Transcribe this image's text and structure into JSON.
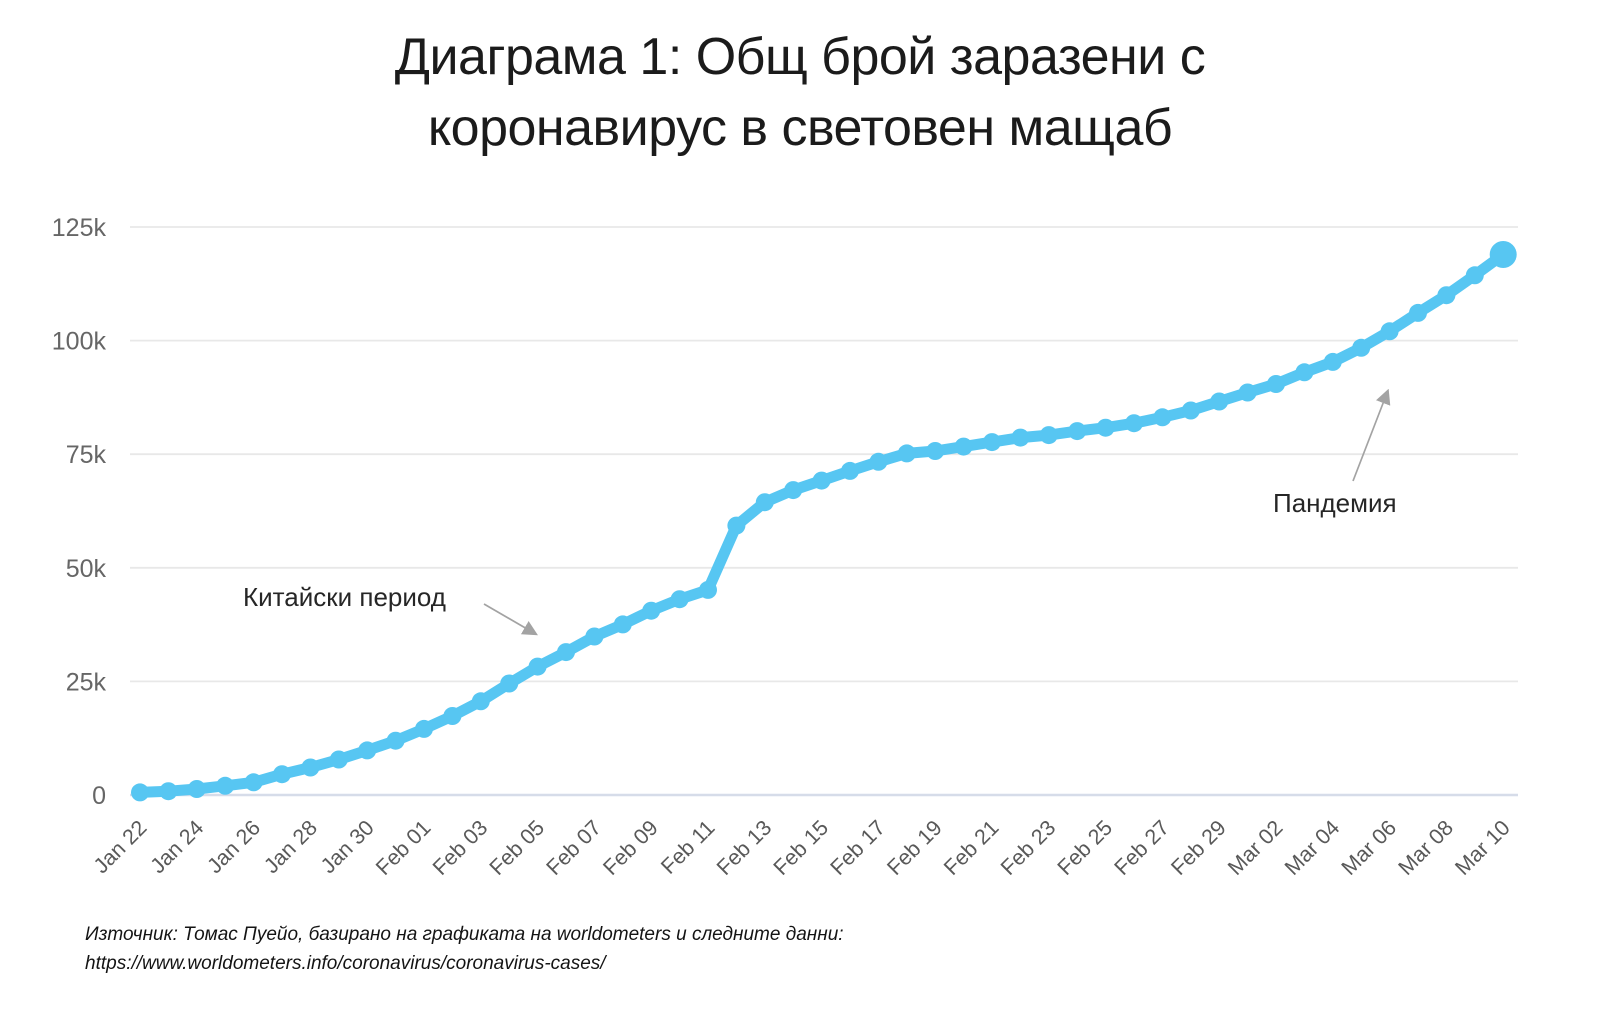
{
  "title": {
    "line1": "Диаграма 1: Общ брой заразени с",
    "line2": "коронавирус в световен мащаб"
  },
  "source": {
    "line1": "Източник: Томас Пуейо, базирано на графиката на worldometers и следните данни:",
    "line2": "https://www.worldometers.info/coronavirus/coronavirus-cases/"
  },
  "colors": {
    "line": "#57C6F2",
    "grid": "#e8e8e8",
    "axis_line": "#d6dce9",
    "y_tick_text": "#666666",
    "x_tick_text": "#595959",
    "title_text": "#1b1b1b",
    "annotation_text": "#262626",
    "arrow": "#a3a3a3"
  },
  "chart_data": {
    "type": "line",
    "title": "Диаграма 1: Общ брой заразени с коронавирус в световен мащаб",
    "series_name": "Общ брой заразени с коронавирус",
    "x": [
      "Jan 22",
      "Jan 23",
      "Jan 24",
      "Jan 25",
      "Jan 26",
      "Jan 27",
      "Jan 28",
      "Jan 29",
      "Jan 30",
      "Jan 31",
      "Feb 01",
      "Feb 02",
      "Feb 03",
      "Feb 04",
      "Feb 05",
      "Feb 06",
      "Feb 07",
      "Feb 08",
      "Feb 09",
      "Feb 10",
      "Feb 11",
      "Feb 12",
      "Feb 13",
      "Feb 14",
      "Feb 15",
      "Feb 16",
      "Feb 17",
      "Feb 18",
      "Feb 19",
      "Feb 20",
      "Feb 21",
      "Feb 22",
      "Feb 23",
      "Feb 24",
      "Feb 25",
      "Feb 26",
      "Feb 27",
      "Feb 28",
      "Feb 29",
      "Mar 01",
      "Mar 02",
      "Mar 03",
      "Mar 04",
      "Mar 05",
      "Mar 06",
      "Mar 07",
      "Mar 08",
      "Mar 09",
      "Mar 10"
    ],
    "values": [
      580,
      845,
      1317,
      2015,
      2800,
      4581,
      6058,
      7813,
      9823,
      11950,
      14553,
      17391,
      20630,
      24545,
      28266,
      31439,
      34876,
      37552,
      40553,
      43099,
      45134,
      59287,
      64438,
      67100,
      69197,
      71329,
      73332,
      75184,
      75700,
      76677,
      77673,
      78651,
      79205,
      80087,
      80828,
      81820,
      83112,
      84615,
      86604,
      88585,
      90443,
      93016,
      95314,
      98425,
      102050,
      106099,
      109991,
      114381,
      118948
    ],
    "x_tick_step": 2,
    "x_tick_labels": [
      "Jan 22",
      "Jan 24",
      "Jan 26",
      "Jan 28",
      "Jan 30",
      "Feb 01",
      "Feb 03",
      "Feb 05",
      "Feb 07",
      "Feb 09",
      "Feb 11",
      "Feb 13",
      "Feb 15",
      "Feb 17",
      "Feb 19",
      "Feb 21",
      "Feb 23",
      "Feb 25",
      "Feb 27",
      "Feb 29",
      "Mar 02",
      "Mar 04",
      "Mar 06",
      "Mar 08",
      "Mar 10"
    ],
    "y_ticks": [
      {
        "label": "0",
        "value": 0
      },
      {
        "label": "25k",
        "value": 25000
      },
      {
        "label": "50k",
        "value": 50000
      },
      {
        "label": "75k",
        "value": 75000
      },
      {
        "label": "100k",
        "value": 100000
      },
      {
        "label": "125k",
        "value": 125000
      }
    ],
    "ylim": [
      0,
      131000
    ],
    "grid": true,
    "legend": "none",
    "marker": "circle",
    "line_color": "#57C6F2",
    "annotations": [
      {
        "text": "Китайски период",
        "arrow_from": [
          484,
          604
        ],
        "arrow_to": [
          534,
          633
        ]
      },
      {
        "text": "Пандемия",
        "arrow_from": [
          1353,
          481
        ],
        "arrow_to": [
          1387,
          393
        ]
      }
    ]
  }
}
